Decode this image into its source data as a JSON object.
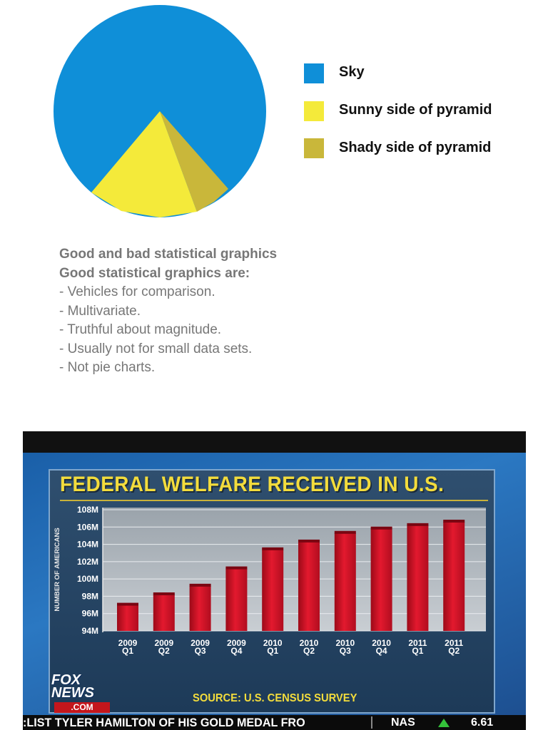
{
  "pie_legend": [
    {
      "label": "Sky",
      "color": "#0f8fd8"
    },
    {
      "label": "Sunny side of pyramid",
      "color": "#f4ea3a"
    },
    {
      "label": "Shady side of pyramid",
      "color": "#c9b73a"
    }
  ],
  "notes": {
    "heading": "Good and bad statistical graphics",
    "subheading": "Good statistical graphics are:",
    "items": [
      "- Vehicles for comparison.",
      "- Multivariate.",
      "- Truthful about magnitude.",
      "- Usually not for small data sets.",
      "- Not pie charts."
    ]
  },
  "broadcast": {
    "logo_line1": "FOX",
    "logo_line2": "NEWS",
    "logo_com": ".COM",
    "source": "SOURCE: U.S. CENSUS SURVEY",
    "ticker_text": ":LIST TYLER HAMILTON OF HIS GOLD MEDAL FRO",
    "ticker_symbol": "NAS",
    "ticker_value": "6.61",
    "ticker_arrow_color": "#34c23a"
  },
  "chart_data": [
    {
      "type": "pie",
      "title": "",
      "labels": [
        "Sky",
        "Sunny side of pyramid",
        "Shady side of pyramid"
      ],
      "values": [
        80,
        14,
        6
      ],
      "colors": [
        "#0f8fd8",
        "#f4ea3a",
        "#c9b73a"
      ],
      "legend": "right"
    },
    {
      "type": "bar",
      "title": "FEDERAL WELFARE RECEIVED IN U.S.",
      "xlabel": "",
      "ylabel": "NUMBER OF AMERICANS",
      "categories": [
        [
          "2009",
          "Q1"
        ],
        [
          "2009",
          "Q2"
        ],
        [
          "2009",
          "Q3"
        ],
        [
          "2009",
          "Q4"
        ],
        [
          "2010",
          "Q1"
        ],
        [
          "2010",
          "Q2"
        ],
        [
          "2010",
          "Q3"
        ],
        [
          "2010",
          "Q4"
        ],
        [
          "2011",
          "Q1"
        ],
        [
          "2011",
          "Q2"
        ]
      ],
      "values": [
        97.0,
        98.2,
        99.2,
        101.2,
        103.4,
        104.3,
        105.3,
        105.8,
        106.2,
        106.6
      ],
      "y_ticks": [
        "108M",
        "106M",
        "104M",
        "102M",
        "100M",
        "98M",
        "96M",
        "94M"
      ],
      "y_tick_values": [
        108,
        106,
        104,
        102,
        100,
        98,
        96,
        94
      ],
      "ylim": [
        94,
        108
      ],
      "grid": true,
      "bar_color": "#d8142a"
    }
  ]
}
